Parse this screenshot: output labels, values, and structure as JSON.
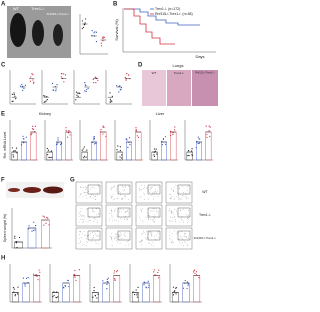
{
  "panels": {
    "a": {
      "letter": "A",
      "groups": [
        "WT",
        "Trex1-/-",
        "Rnf115-/-Trex1-/-"
      ]
    },
    "b": {
      "letter": "B",
      "y_label": "Survival (%)",
      "x_label": "Days",
      "legend": [
        "Trex1-/- (n=172)",
        "Rnf115-/-Trex1-/- (n=48)"
      ]
    },
    "c": {
      "letter": "C"
    },
    "d": {
      "letter": "D",
      "title": "Lungs",
      "groups": [
        "WT",
        "Trex1-/-",
        "Rnf115-/-Trex1-/-"
      ]
    },
    "e": {
      "letter": "E",
      "organs": [
        "Kidney",
        "Liver"
      ],
      "y_label": "Rel. mRNA Level"
    },
    "f": {
      "letter": "F",
      "y_label": "Spleen weight (%)"
    },
    "g": {
      "letter": "G",
      "groups": [
        "WT",
        "Trex1-/-",
        "Rnf115-/-Trex1-/-"
      ]
    },
    "h": {
      "letter": "H"
    }
  }
}
